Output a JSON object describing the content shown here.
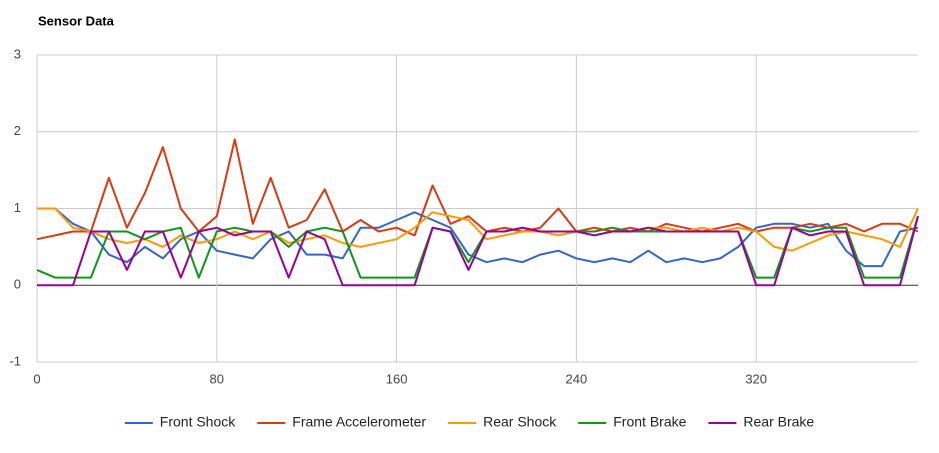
{
  "chart_data": {
    "type": "line",
    "title": "Sensor Data",
    "x": [
      0,
      8,
      16,
      24,
      32,
      40,
      48,
      56,
      64,
      72,
      80,
      88,
      96,
      104,
      112,
      120,
      128,
      136,
      144,
      152,
      160,
      168,
      176,
      184,
      192,
      200,
      208,
      216,
      224,
      232,
      240,
      248,
      256,
      264,
      272,
      280,
      288,
      296,
      304,
      312,
      320,
      328,
      336,
      344,
      352,
      360,
      368,
      376,
      384,
      392
    ],
    "series": [
      {
        "name": "Front Shock",
        "color": "#3366cc",
        "values": [
          1.0,
          1.0,
          0.8,
          0.7,
          0.4,
          0.3,
          0.5,
          0.35,
          0.6,
          0.7,
          0.45,
          0.4,
          0.35,
          0.6,
          0.7,
          0.4,
          0.4,
          0.35,
          0.75,
          0.75,
          0.85,
          0.95,
          0.85,
          0.75,
          0.4,
          0.3,
          0.35,
          0.3,
          0.4,
          0.45,
          0.35,
          0.3,
          0.35,
          0.3,
          0.45,
          0.3,
          0.35,
          0.3,
          0.35,
          0.5,
          0.75,
          0.8,
          0.8,
          0.75,
          0.8,
          0.45,
          0.25,
          0.25,
          0.7,
          0.75
        ]
      },
      {
        "name": "Frame Accelerometer",
        "color": "#dc3912",
        "values": [
          0.6,
          0.65,
          0.7,
          0.7,
          1.4,
          0.75,
          1.2,
          1.8,
          1.0,
          0.7,
          0.9,
          1.9,
          0.8,
          1.4,
          0.75,
          0.85,
          1.25,
          0.7,
          0.85,
          0.7,
          0.75,
          0.65,
          1.3,
          0.8,
          0.9,
          0.7,
          0.75,
          0.7,
          0.75,
          1.0,
          0.7,
          0.75,
          0.7,
          0.75,
          0.7,
          0.8,
          0.75,
          0.7,
          0.75,
          0.8,
          0.7,
          0.75,
          0.75,
          0.8,
          0.75,
          0.8,
          0.7,
          0.8,
          0.8,
          0.7
        ]
      },
      {
        "name": "Rear Shock",
        "color": "#ff9900",
        "values": [
          1.0,
          1.0,
          0.75,
          0.7,
          0.6,
          0.55,
          0.6,
          0.5,
          0.65,
          0.55,
          0.6,
          0.7,
          0.6,
          0.7,
          0.55,
          0.6,
          0.65,
          0.55,
          0.5,
          0.55,
          0.6,
          0.75,
          0.95,
          0.9,
          0.85,
          0.6,
          0.65,
          0.7,
          0.7,
          0.65,
          0.7,
          0.7,
          0.75,
          0.7,
          0.75,
          0.75,
          0.7,
          0.75,
          0.7,
          0.75,
          0.7,
          0.5,
          0.45,
          0.55,
          0.65,
          0.7,
          0.65,
          0.6,
          0.5,
          1.0
        ]
      },
      {
        "name": "Front Brake",
        "color": "#109618",
        "values": [
          0.2,
          0.1,
          0.1,
          0.1,
          0.7,
          0.7,
          0.6,
          0.7,
          0.75,
          0.1,
          0.7,
          0.75,
          0.7,
          0.7,
          0.5,
          0.7,
          0.75,
          0.7,
          0.1,
          0.1,
          0.1,
          0.1,
          0.75,
          0.7,
          0.3,
          0.7,
          0.7,
          0.75,
          0.7,
          0.7,
          0.7,
          0.7,
          0.75,
          0.7,
          0.7,
          0.7,
          0.7,
          0.7,
          0.7,
          0.7,
          0.1,
          0.1,
          0.75,
          0.7,
          0.75,
          0.75,
          0.1,
          0.1,
          0.1,
          0.9
        ]
      },
      {
        "name": "Rear Brake",
        "color": "#990099",
        "values": [
          0,
          0,
          0,
          0.7,
          0.7,
          0.2,
          0.7,
          0.7,
          0.1,
          0.7,
          0.75,
          0.65,
          0.7,
          0.7,
          0.1,
          0.7,
          0.6,
          0,
          0,
          0,
          0,
          0,
          0.75,
          0.7,
          0.2,
          0.7,
          0.7,
          0.75,
          0.7,
          0.7,
          0.7,
          0.65,
          0.7,
          0.7,
          0.75,
          0.7,
          0.7,
          0.7,
          0.7,
          0.7,
          0,
          0,
          0.75,
          0.65,
          0.7,
          0.7,
          0,
          0,
          0,
          0.9
        ]
      }
    ],
    "xlim": [
      0,
      392
    ],
    "xticks": [
      0,
      80,
      160,
      240,
      320
    ],
    "ylim": [
      -1,
      3
    ],
    "yticks": [
      -1,
      0,
      1,
      2,
      3
    ],
    "grid": true,
    "legend": "bottom"
  }
}
